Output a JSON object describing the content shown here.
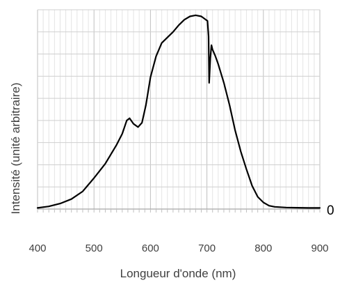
{
  "chart_data": {
    "type": "line",
    "title": "",
    "xlabel": "Longueur d'onde (nm)",
    "ylabel": "Intensité (unité arbitraire)",
    "xlim": [
      400,
      900
    ],
    "ylim": [
      0,
      9
    ],
    "x_ticks": [
      400,
      500,
      600,
      700,
      800,
      900
    ],
    "y_tick_labels": [],
    "zero_label": "0",
    "grid": true,
    "legend": "none",
    "series": [
      {
        "color": "#000000",
        "x": [
          400,
          420,
          440,
          460,
          480,
          500,
          520,
          540,
          550,
          558,
          563,
          570,
          578,
          585,
          592,
          600,
          610,
          620,
          630,
          640,
          650,
          660,
          670,
          680,
          690,
          698,
          701,
          703,
          704,
          706,
          708,
          710,
          715,
          720,
          730,
          740,
          750,
          760,
          770,
          780,
          790,
          800,
          810,
          820,
          840,
          860,
          880,
          900
        ],
        "y": [
          0.05,
          0.12,
          0.25,
          0.45,
          0.8,
          1.4,
          2.05,
          2.9,
          3.4,
          4.0,
          4.1,
          3.85,
          3.7,
          3.9,
          4.7,
          5.95,
          6.9,
          7.5,
          7.75,
          8.0,
          8.3,
          8.55,
          8.7,
          8.75,
          8.7,
          8.55,
          8.5,
          7.8,
          5.7,
          6.8,
          7.4,
          7.2,
          6.9,
          6.55,
          5.7,
          4.7,
          3.55,
          2.6,
          1.8,
          1.05,
          0.55,
          0.3,
          0.15,
          0.1,
          0.07,
          0.06,
          0.05,
          0.05
        ]
      }
    ]
  }
}
